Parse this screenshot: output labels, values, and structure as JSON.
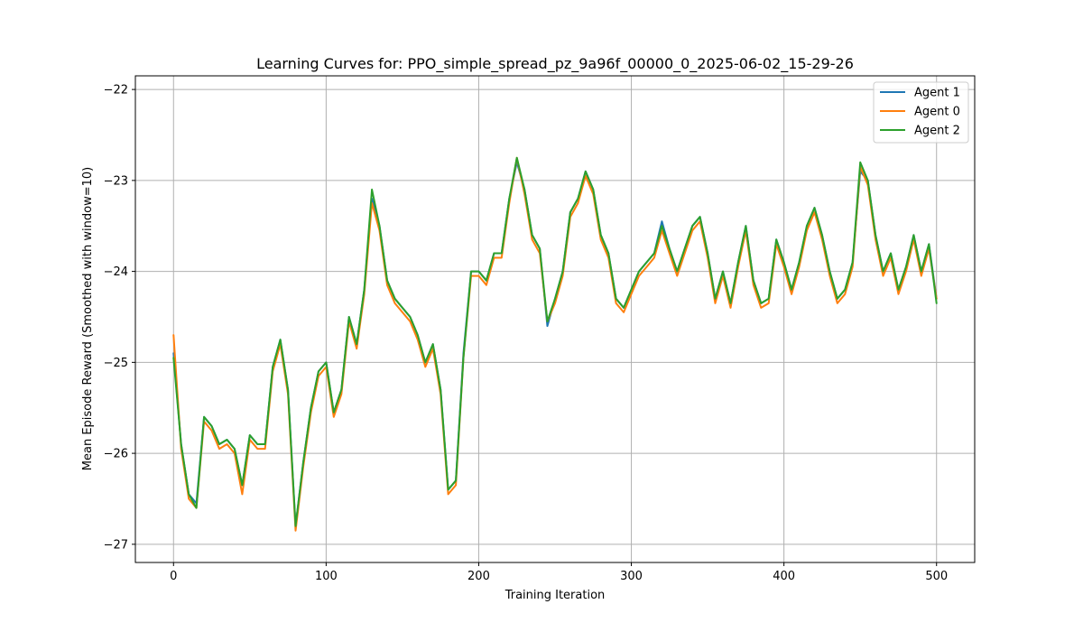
{
  "chart_data": {
    "type": "line",
    "title": "Learning Curves for: PPO_simple_spread_pz_9a96f_00000_0_2025-06-02_15-29-26",
    "xlabel": "Training Iteration",
    "ylabel": "Mean Episode Reward (Smoothed with window=10)",
    "xlim": [
      -25,
      525
    ],
    "ylim": [
      -27.2,
      -21.85
    ],
    "xticks": [
      0,
      100,
      200,
      300,
      400,
      500
    ],
    "yticks": [
      -27,
      -26,
      -25,
      -24,
      -23,
      -22
    ],
    "xtick_labels": [
      "0",
      "100",
      "200",
      "300",
      "400",
      "500"
    ],
    "ytick_labels": [
      "−27",
      "−26",
      "−25",
      "−24",
      "−23",
      "−22"
    ],
    "grid": true,
    "legend_position": "top-right",
    "colors": {
      "Agent 1": "#1f77b4",
      "Agent 0": "#ff7f0e",
      "Agent 2": "#2ca02c"
    },
    "x": [
      0,
      5,
      10,
      15,
      20,
      25,
      30,
      35,
      40,
      45,
      50,
      55,
      60,
      65,
      70,
      75,
      80,
      85,
      90,
      95,
      100,
      105,
      110,
      115,
      120,
      125,
      130,
      135,
      140,
      145,
      150,
      155,
      160,
      165,
      170,
      175,
      180,
      185,
      190,
      195,
      200,
      205,
      210,
      215,
      220,
      225,
      230,
      235,
      240,
      245,
      250,
      255,
      260,
      265,
      270,
      275,
      280,
      285,
      290,
      295,
      300,
      305,
      310,
      315,
      320,
      325,
      330,
      335,
      340,
      345,
      350,
      355,
      360,
      365,
      370,
      375,
      380,
      385,
      390,
      395,
      400,
      405,
      410,
      415,
      420,
      425,
      430,
      435,
      440,
      445,
      450,
      455,
      460,
      465,
      470,
      475,
      480,
      485,
      490,
      495,
      500
    ],
    "series": [
      {
        "name": "Agent 1",
        "values": [
          -24.9,
          -25.9,
          -26.45,
          -26.55,
          -25.6,
          -25.7,
          -25.9,
          -25.85,
          -25.95,
          -26.35,
          -25.8,
          -25.9,
          -25.9,
          -25.05,
          -24.75,
          -25.3,
          -26.8,
          -26.1,
          -25.5,
          -25.1,
          -25.0,
          -25.55,
          -25.3,
          -24.5,
          -24.8,
          -24.2,
          -23.2,
          -23.5,
          -24.1,
          -24.3,
          -24.4,
          -24.5,
          -24.7,
          -25.0,
          -24.8,
          -25.3,
          -26.4,
          -26.3,
          -24.9,
          -24.0,
          -24.0,
          -24.1,
          -23.8,
          -23.8,
          -23.2,
          -22.8,
          -23.1,
          -23.6,
          -23.75,
          -24.6,
          -24.3,
          -24.0,
          -23.35,
          -23.2,
          -22.9,
          -23.1,
          -23.6,
          -23.8,
          -24.3,
          -24.4,
          -24.2,
          -24.0,
          -23.9,
          -23.8,
          -23.45,
          -23.75,
          -24.0,
          -23.75,
          -23.5,
          -23.4,
          -23.8,
          -24.3,
          -24.0,
          -24.35,
          -23.9,
          -23.5,
          -24.1,
          -24.35,
          -24.3,
          -23.65,
          -23.9,
          -24.2,
          -23.9,
          -23.5,
          -23.3,
          -23.6,
          -24.0,
          -24.3,
          -24.2,
          -23.9,
          -22.9,
          -23.0,
          -23.6,
          -24.0,
          -23.8,
          -24.2,
          -23.95,
          -23.6,
          -24.0,
          -23.7,
          -24.3
        ],
        "smoothed_hint": ""
      },
      {
        "name": "Agent 0",
        "values": [
          -24.7,
          -25.95,
          -26.5,
          -26.6,
          -25.65,
          -25.75,
          -25.95,
          -25.9,
          -26.0,
          -26.45,
          -25.85,
          -25.95,
          -25.95,
          -25.1,
          -24.8,
          -25.35,
          -26.85,
          -26.15,
          -25.55,
          -25.15,
          -25.05,
          -25.6,
          -25.35,
          -24.55,
          -24.85,
          -24.25,
          -23.25,
          -23.55,
          -24.15,
          -24.35,
          -24.45,
          -24.55,
          -24.75,
          -25.05,
          -24.85,
          -25.35,
          -26.45,
          -26.35,
          -24.95,
          -24.05,
          -24.05,
          -24.15,
          -23.85,
          -23.85,
          -23.25,
          -22.75,
          -23.15,
          -23.65,
          -23.8,
          -24.55,
          -24.35,
          -24.05,
          -23.4,
          -23.25,
          -22.95,
          -23.15,
          -23.65,
          -23.85,
          -24.35,
          -24.45,
          -24.25,
          -24.05,
          -23.95,
          -23.85,
          -23.55,
          -23.8,
          -24.05,
          -23.8,
          -23.55,
          -23.45,
          -23.85,
          -24.35,
          -24.05,
          -24.4,
          -23.95,
          -23.55,
          -24.15,
          -24.4,
          -24.35,
          -23.7,
          -23.95,
          -24.25,
          -23.95,
          -23.55,
          -23.35,
          -23.65,
          -24.05,
          -24.35,
          -24.25,
          -23.95,
          -22.85,
          -23.05,
          -23.65,
          -24.05,
          -23.85,
          -24.25,
          -24.0,
          -23.65,
          -24.05,
          -23.75,
          -24.3
        ]
      },
      {
        "name": "Agent 2",
        "values": [
          -24.95,
          -25.9,
          -26.45,
          -26.6,
          -25.6,
          -25.7,
          -25.9,
          -25.85,
          -25.95,
          -26.35,
          -25.8,
          -25.9,
          -25.9,
          -25.05,
          -24.75,
          -25.3,
          -26.8,
          -26.1,
          -25.5,
          -25.1,
          -25.0,
          -25.55,
          -25.3,
          -24.5,
          -24.8,
          -24.2,
          -23.1,
          -23.5,
          -24.1,
          -24.3,
          -24.4,
          -24.5,
          -24.7,
          -25.0,
          -24.8,
          -25.3,
          -26.4,
          -26.3,
          -24.95,
          -24.0,
          -24.0,
          -24.1,
          -23.8,
          -23.8,
          -23.2,
          -22.75,
          -23.1,
          -23.6,
          -23.75,
          -24.55,
          -24.3,
          -24.0,
          -23.35,
          -23.2,
          -22.9,
          -23.1,
          -23.6,
          -23.8,
          -24.3,
          -24.4,
          -24.2,
          -24.0,
          -23.9,
          -23.8,
          -23.5,
          -23.75,
          -24.0,
          -23.75,
          -23.5,
          -23.4,
          -23.8,
          -24.3,
          -24.0,
          -24.35,
          -23.9,
          -23.5,
          -24.1,
          -24.35,
          -24.3,
          -23.65,
          -23.9,
          -24.2,
          -23.9,
          -23.5,
          -23.3,
          -23.6,
          -24.0,
          -24.3,
          -24.2,
          -23.9,
          -22.8,
          -23.0,
          -23.6,
          -24.0,
          -23.8,
          -24.2,
          -23.95,
          -23.6,
          -24.0,
          -23.7,
          -24.35
        ]
      }
    ]
  }
}
